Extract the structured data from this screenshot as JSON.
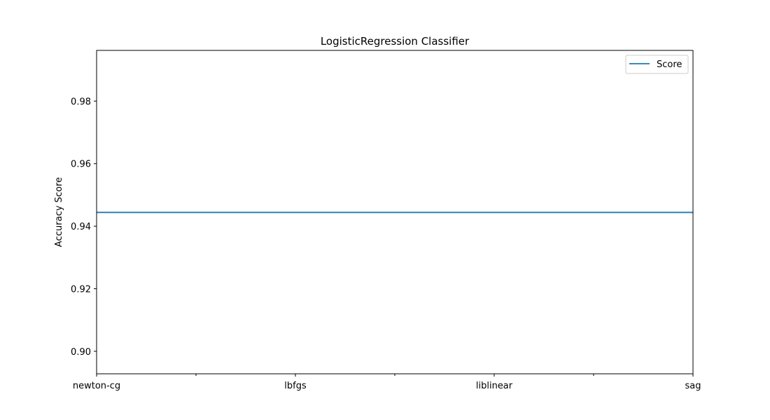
{
  "chart_data": {
    "type": "line",
    "title": "LogisticRegression Classifier",
    "xlabel": "",
    "ylabel": "Accuracy Score",
    "categories": [
      "newton-cg",
      "lbfgs",
      "liblinear",
      "sag"
    ],
    "x_minor_ticks": [
      0.5,
      1.5,
      2.5
    ],
    "xlim": [
      0,
      3
    ],
    "ylim": [
      0.8928,
      0.9962
    ],
    "yticks": [
      0.9,
      0.92,
      0.94,
      0.96,
      0.98
    ],
    "ytick_labels": [
      "0.90",
      "0.92",
      "0.94",
      "0.96",
      "0.98"
    ],
    "series": [
      {
        "name": "Score",
        "values": [
          0.9444,
          0.9444,
          0.9444,
          0.9444
        ]
      }
    ],
    "legend_position": "upper-right",
    "grid": false,
    "colors": {
      "series": "#1f77b4",
      "axes": "#000000",
      "background": "#ffffff"
    }
  }
}
